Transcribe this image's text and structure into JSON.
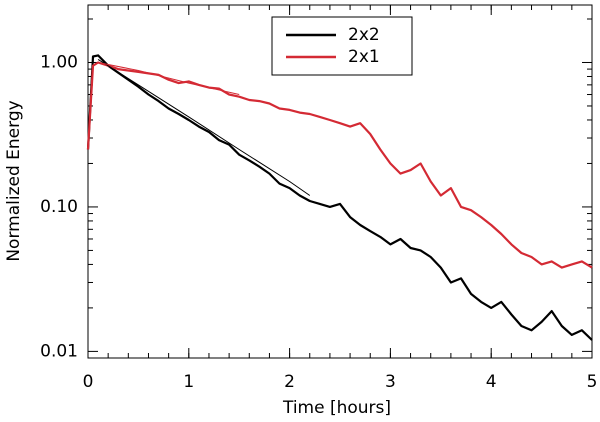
{
  "chart_data": {
    "type": "line",
    "xlabel": "Time [hours]",
    "ylabel": "Normalized Energy",
    "xlim": [
      0,
      5
    ],
    "xticks": [
      0,
      1,
      2,
      3,
      4,
      5
    ],
    "ylim": [
      0.009,
      2.5
    ],
    "yscale": "log",
    "yticks": [
      {
        "value": 0.01,
        "label": "0.01"
      },
      {
        "value": 0.1,
        "label": "0.10"
      },
      {
        "value": 1,
        "label": "1.00"
      }
    ],
    "minor_ticks": true,
    "legend": "upper center",
    "series": [
      {
        "name": "2x2",
        "color": "#000000",
        "width": 2.2,
        "x": [
          0,
          0.05,
          0.1,
          0.2,
          0.3,
          0.4,
          0.5,
          0.6,
          0.7,
          0.8,
          0.9,
          1.0,
          1.1,
          1.2,
          1.3,
          1.4,
          1.5,
          1.6,
          1.7,
          1.8,
          1.9,
          2.0,
          2.1,
          2.2,
          2.3,
          2.4,
          2.5,
          2.6,
          2.7,
          2.8,
          2.9,
          3.0,
          3.1,
          3.2,
          3.3,
          3.4,
          3.5,
          3.6,
          3.7,
          3.8,
          3.9,
          4.0,
          4.1,
          4.2,
          4.3,
          4.4,
          4.5,
          4.6,
          4.7,
          4.8,
          4.9,
          5.0
        ],
        "values": [
          0.25,
          1.1,
          1.12,
          0.95,
          0.85,
          0.76,
          0.68,
          0.6,
          0.54,
          0.48,
          0.44,
          0.4,
          0.36,
          0.33,
          0.29,
          0.27,
          0.23,
          0.21,
          0.19,
          0.17,
          0.145,
          0.135,
          0.12,
          0.11,
          0.105,
          0.1,
          0.105,
          0.085,
          0.075,
          0.068,
          0.062,
          0.055,
          0.06,
          0.052,
          0.05,
          0.045,
          0.038,
          0.03,
          0.032,
          0.025,
          0.022,
          0.02,
          0.022,
          0.018,
          0.015,
          0.014,
          0.016,
          0.019,
          0.015,
          0.013,
          0.014,
          0.012
        ]
      },
      {
        "name": "2x1",
        "color": "#d42a34",
        "width": 2.2,
        "x": [
          0,
          0.05,
          0.1,
          0.2,
          0.3,
          0.4,
          0.5,
          0.6,
          0.7,
          0.8,
          0.9,
          1.0,
          1.1,
          1.2,
          1.3,
          1.4,
          1.5,
          1.6,
          1.7,
          1.8,
          1.9,
          2.0,
          2.1,
          2.2,
          2.3,
          2.4,
          2.5,
          2.6,
          2.7,
          2.8,
          2.9,
          3.0,
          3.1,
          3.2,
          3.3,
          3.4,
          3.5,
          3.6,
          3.7,
          3.8,
          3.9,
          4.0,
          4.1,
          4.2,
          4.3,
          4.4,
          4.5,
          4.6,
          4.7,
          4.8,
          4.9,
          5.0
        ],
        "values": [
          0.25,
          0.95,
          1.0,
          0.95,
          0.9,
          0.88,
          0.86,
          0.84,
          0.82,
          0.76,
          0.72,
          0.74,
          0.7,
          0.67,
          0.66,
          0.6,
          0.58,
          0.55,
          0.54,
          0.52,
          0.48,
          0.47,
          0.45,
          0.44,
          0.42,
          0.4,
          0.38,
          0.36,
          0.38,
          0.32,
          0.25,
          0.2,
          0.17,
          0.18,
          0.2,
          0.15,
          0.12,
          0.135,
          0.1,
          0.095,
          0.085,
          0.075,
          0.065,
          0.055,
          0.048,
          0.045,
          0.04,
          0.042,
          0.038,
          0.04,
          0.042,
          0.038
        ]
      },
      {
        "color": "#000000",
        "width": 1,
        "x": [
          0.1,
          0.5,
          1.0,
          1.5,
          2.0,
          2.2
        ],
        "values": [
          1.05,
          0.7,
          0.42,
          0.25,
          0.15,
          0.12
        ]
      },
      {
        "color": "#d42a34",
        "width": 1,
        "x": [
          0.1,
          0.5,
          1.0,
          1.5
        ],
        "values": [
          1.0,
          0.88,
          0.72,
          0.6
        ]
      }
    ]
  }
}
